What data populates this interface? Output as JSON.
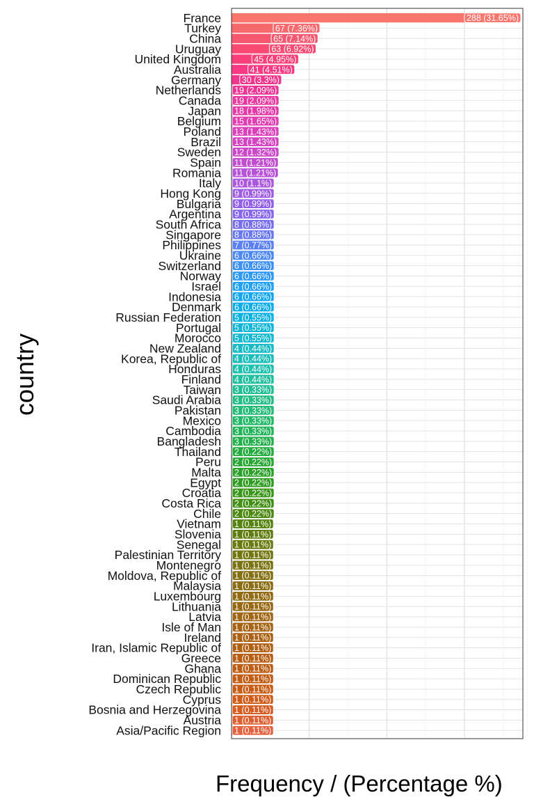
{
  "chart_data": {
    "type": "bar",
    "orientation": "horizontal",
    "title": "",
    "xlabel": "Frequency / (Percentage %)",
    "ylabel": "country",
    "grid": true,
    "legend": "none",
    "xlim": [
      0,
      300
    ],
    "categories": [
      "France",
      "Turkey",
      "China",
      "Uruguay",
      "United Kingdom",
      "Australia",
      "Germany",
      "Netherlands",
      "Canada",
      "Japan",
      "Belgium",
      "Poland",
      "Brazil",
      "Sweden",
      "Spain",
      "Romania",
      "Italy",
      "Hong Kong",
      "Bulgaria",
      "Argentina",
      "South Africa",
      "Singapore",
      "Philippines",
      "Ukraine",
      "Switzerland",
      "Norway",
      "Israel",
      "Indonesia",
      "Denmark",
      "Russian Federation",
      "Portugal",
      "Morocco",
      "New Zealand",
      "Korea, Republic of",
      "Honduras",
      "Finland",
      "Taiwan",
      "Saudi Arabia",
      "Pakistan",
      "Mexico",
      "Cambodia",
      "Bangladesh",
      "Thailand",
      "Peru",
      "Malta",
      "Egypt",
      "Croatia",
      "Costa Rica",
      "Chile",
      "Vietnam",
      "Slovenia",
      "Senegal",
      "Palestinian Territory",
      "Montenegro",
      "Moldova, Republic of",
      "Malaysia",
      "Luxembourg",
      "Lithuania",
      "Latvia",
      "Isle of Man",
      "Ireland",
      "Iran, Islamic Republic of",
      "Greece",
      "Ghana",
      "Dominican Republic",
      "Czech Republic",
      "Cyprus",
      "Bosnia and Herzegovina",
      "Austria",
      "Asia/Pacific Region"
    ],
    "values": [
      288,
      67,
      65,
      63,
      45,
      41,
      30,
      19,
      19,
      18,
      15,
      13,
      13,
      12,
      11,
      11,
      10,
      9,
      9,
      9,
      8,
      8,
      7,
      6,
      6,
      6,
      6,
      6,
      6,
      5,
      5,
      5,
      4,
      4,
      4,
      4,
      3,
      3,
      3,
      3,
      3,
      3,
      2,
      2,
      2,
      2,
      2,
      2,
      2,
      1,
      1,
      1,
      1,
      1,
      1,
      1,
      1,
      1,
      1,
      1,
      1,
      1,
      1,
      1,
      1,
      1,
      1,
      1,
      1,
      1
    ],
    "labels": [
      "288 (31.65%)",
      "67 (7.36%)",
      "65 (7.14%)",
      "63 (6.92%)",
      "45 (4.95%)",
      "41 (4.51%)",
      "30 (3.3%)",
      "19 (2.09%)",
      "19 (2.09%)",
      "18 (1.98%)",
      "15 (1.65%)",
      "13 (1.43%)",
      "13 (1.43%)",
      "12 (1.32%)",
      "11 (1.21%)",
      "11 (1.21%)",
      "10 (1.1%)",
      "9 (0.99%)",
      "9 (0.99%)",
      "9 (0.99%)",
      "8 (0.88%)",
      "8 (0.88%)",
      "7 (0.77%)",
      "6 (0.66%)",
      "6 (0.66%)",
      "6 (0.66%)",
      "6 (0.66%)",
      "6 (0.66%)",
      "6 (0.66%)",
      "5 (0.55%)",
      "5 (0.55%)",
      "5 (0.55%)",
      "4 (0.44%)",
      "4 (0.44%)",
      "4 (0.44%)",
      "4 (0.44%)",
      "3 (0.33%)",
      "3 (0.33%)",
      "3 (0.33%)",
      "3 (0.33%)",
      "3 (0.33%)",
      "3 (0.33%)",
      "2 (0.22%)",
      "2 (0.22%)",
      "2 (0.22%)",
      "2 (0.22%)",
      "2 (0.22%)",
      "2 (0.22%)",
      "2 (0.22%)",
      "1 (0.11%)",
      "1 (0.11%)",
      "1 (0.11%)",
      "1 (0.11%)",
      "1 (0.11%)",
      "1 (0.11%)",
      "1 (0.11%)",
      "1 (0.11%)",
      "1 (0.11%)",
      "1 (0.11%)",
      "1 (0.11%)",
      "1 (0.11%)",
      "1 (0.11%)",
      "1 (0.11%)",
      "1 (0.11%)",
      "1 (0.11%)",
      "1 (0.11%)",
      "1 (0.11%)",
      "1 (0.11%)",
      "1 (0.11%)",
      "1 (0.11%)"
    ],
    "colors": [
      "#F8766D",
      "#F8696E",
      "#F8586F",
      "#F84A73",
      "#F83F7A",
      "#F73A83",
      "#F3368D",
      "#EF3596",
      "#EB37A0",
      "#E639A9",
      "#E13CB2",
      "#DB3FBA",
      "#D443C2",
      "#CC48CA",
      "#C24DD1",
      "#B852D8",
      "#AC58DE",
      "#A05EE3",
      "#935FE8",
      "#8566EC",
      "#776EEF",
      "#6877F2",
      "#5A80F4",
      "#4C88F5",
      "#3D91F6",
      "#2E99F5",
      "#1FA0F3",
      "#11A6EF",
      "#0AACEA",
      "#0AB1E3",
      "#0DB5DB",
      "#13B8D1",
      "#17BBC6",
      "#1ABDBA",
      "#1DBFAD",
      "#1FBFA0",
      "#20BE92",
      "#21BD84",
      "#21BB76",
      "#21B868",
      "#21B45A",
      "#22B04C",
      "#23AC3F",
      "#26A733",
      "#2AA22A",
      "#309C21",
      "#389619",
      "#418F14",
      "#4B8911",
      "#55830F",
      "#5F7D0E",
      "#697A0E",
      "#72760F",
      "#7A7310",
      "#837011",
      "#8A6D12",
      "#916A12",
      "#986712",
      "#9F6513",
      "#A56313",
      "#AB6113",
      "#B15F13",
      "#B75E13",
      "#BD5D13",
      "#C35C13",
      "#C95C14",
      "#CF5C18",
      "#D65D22",
      "#DE5F30",
      "#E6623F"
    ]
  }
}
